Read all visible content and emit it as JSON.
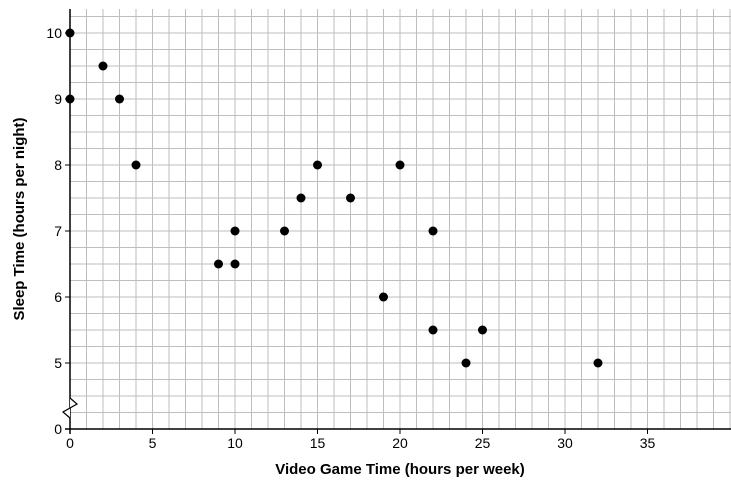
{
  "chart_data": {
    "type": "scatter",
    "xlabel": "Video Game Time (hours per week)",
    "ylabel": "Sleep Time (hours per night)",
    "xlim": [
      0,
      40
    ],
    "ylim": [
      0,
      10.5
    ],
    "y_axis_break": "between 0 and 5",
    "x_ticks": [
      "0",
      "5",
      "10",
      "15",
      "20",
      "25",
      "30",
      "35"
    ],
    "y_ticks": [
      "0",
      "5",
      "6",
      "7",
      "8",
      "9",
      "10"
    ],
    "grid": true,
    "minor_grid": {
      "x_step": 1,
      "y_step": 0.25
    },
    "points": [
      {
        "x": 0,
        "y": 10
      },
      {
        "x": 0,
        "y": 9
      },
      {
        "x": 2,
        "y": 9.5
      },
      {
        "x": 3,
        "y": 9
      },
      {
        "x": 4,
        "y": 8
      },
      {
        "x": 9,
        "y": 6.5
      },
      {
        "x": 10,
        "y": 7
      },
      {
        "x": 10,
        "y": 6.5
      },
      {
        "x": 13,
        "y": 7
      },
      {
        "x": 14,
        "y": 7.5
      },
      {
        "x": 15,
        "y": 8
      },
      {
        "x": 17,
        "y": 7.5
      },
      {
        "x": 19,
        "y": 6
      },
      {
        "x": 20,
        "y": 8
      },
      {
        "x": 22,
        "y": 7
      },
      {
        "x": 22,
        "y": 5.5
      },
      {
        "x": 24,
        "y": 5
      },
      {
        "x": 25,
        "y": 5.5
      },
      {
        "x": 32,
        "y": 5
      }
    ]
  },
  "colors": {
    "grid": "#bdbdbd",
    "axis": "#000000",
    "point": "#000000",
    "background": "#ffffff"
  }
}
